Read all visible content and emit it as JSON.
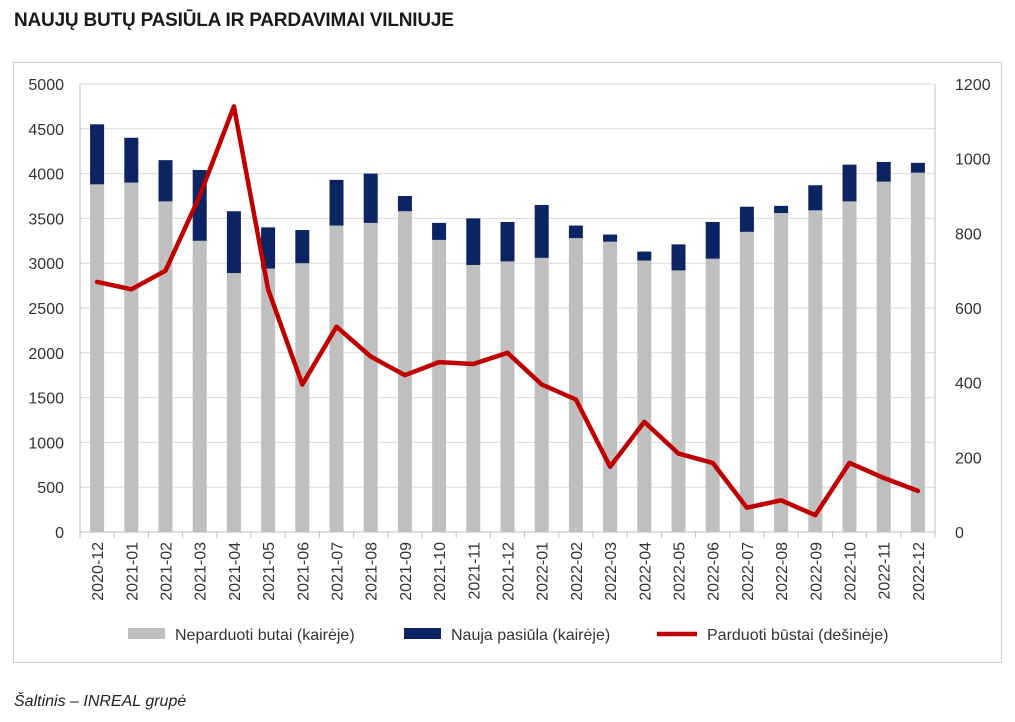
{
  "title": "NAUJŲ BUTŲ PASIŪLA IR PARDAVIMAI VILNIUJE",
  "source": "Šaltinis – INREAL grupė",
  "colors": {
    "unsold": "#bfbfbf",
    "new_supply": "#0c2461",
    "sold": "#c00000",
    "grid": "#d9d9d9"
  },
  "chart_data": {
    "type": "bar",
    "stacked": true,
    "categories": [
      "2020-12",
      "2021-01",
      "2021-02",
      "2021-03",
      "2021-04",
      "2021-05",
      "2021-06",
      "2021-07",
      "2021-08",
      "2021-09",
      "2021-10",
      "2021-11",
      "2021-12",
      "2022-01",
      "2022-02",
      "2022-03",
      "2022-04",
      "2022-05",
      "2022-06",
      "2022-07",
      "2022-08",
      "2022-09",
      "2022-10",
      "2022-11",
      "2022-12"
    ],
    "series": [
      {
        "name": "Neparduoti butai (kairėje)",
        "type": "bar",
        "axis": "left",
        "values": [
          3880,
          3900,
          3690,
          3250,
          2890,
          2940,
          3000,
          3420,
          3450,
          3580,
          3260,
          2980,
          3020,
          3060,
          3280,
          3240,
          3030,
          2920,
          3050,
          3350,
          3560,
          3590,
          3690,
          3910,
          4010
        ]
      },
      {
        "name": "Nauja pasiūla (kairėje)",
        "type": "bar",
        "axis": "left",
        "values": [
          670,
          500,
          460,
          790,
          690,
          460,
          370,
          510,
          550,
          170,
          190,
          520,
          440,
          590,
          140,
          80,
          100,
          290,
          410,
          280,
          80,
          280,
          410,
          220,
          110
        ]
      },
      {
        "name": "Parduoti būstai (dešinėje)",
        "type": "line",
        "axis": "right",
        "values": [
          670,
          650,
          700,
          900,
          1140,
          650,
          395,
          550,
          470,
          420,
          455,
          450,
          480,
          395,
          355,
          175,
          295,
          210,
          185,
          65,
          85,
          45,
          185,
          145,
          110
        ]
      }
    ],
    "y_left": {
      "min": 0,
      "max": 5000,
      "ticks": [
        "0",
        "500",
        "1000",
        "1500",
        "2000",
        "2500",
        "3000",
        "3500",
        "4000",
        "4500",
        "5000"
      ]
    },
    "y_right": {
      "min": 0,
      "max": 1200,
      "ticks": [
        "0",
        "200",
        "400",
        "600",
        "800",
        "1000",
        "1200"
      ]
    },
    "grid": true,
    "legend_position": "bottom"
  }
}
